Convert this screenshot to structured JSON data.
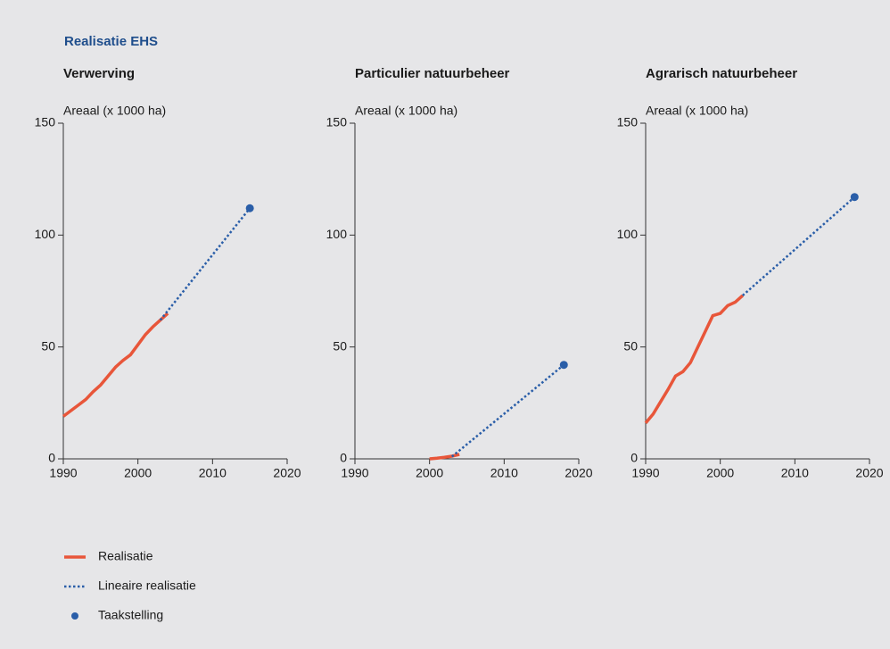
{
  "title": "Realisatie EHS",
  "chart_data": [
    {
      "type": "line",
      "title": "Verwerving",
      "ylabel": "Areaal (x 1000 ha)",
      "xlim": [
        1990,
        2020
      ],
      "xticks": [
        1990,
        2000,
        2010,
        2020
      ],
      "ylim": [
        0,
        150
      ],
      "yticks": [
        0,
        50,
        100,
        150
      ],
      "series": [
        {
          "name": "Realisatie",
          "color": "#e8563a",
          "line_style": "solid",
          "x": [
            1990,
            1991,
            1992,
            1993,
            1994,
            1995,
            1996,
            1997,
            1998,
            1999,
            2000,
            2001,
            2002,
            2003,
            2004
          ],
          "values": [
            19,
            21.5,
            24,
            26.5,
            30,
            33,
            37,
            41,
            44,
            46.5,
            51,
            55.5,
            59,
            62,
            65
          ]
        },
        {
          "name": "Lineaire realisatie",
          "color": "#2a5ea8",
          "line_style": "dotted",
          "x": [
            2003,
            2015
          ],
          "values": [
            62,
            112
          ]
        },
        {
          "name": "Taakstelling",
          "color": "#2a5ea8",
          "line_style": "none",
          "marker": "circle",
          "x": [
            2015
          ],
          "values": [
            112
          ]
        }
      ]
    },
    {
      "type": "line",
      "title": "Particulier natuurbeheer",
      "ylabel": "Areaal (x 1000 ha)",
      "xlim": [
        1990,
        2020
      ],
      "xticks": [
        1990,
        2000,
        2010,
        2020
      ],
      "ylim": [
        0,
        150
      ],
      "yticks": [
        0,
        50,
        100,
        150
      ],
      "series": [
        {
          "name": "Realisatie",
          "color": "#e8563a",
          "line_style": "solid",
          "x": [
            2000,
            2001,
            2002,
            2003,
            2004
          ],
          "values": [
            0,
            0.3,
            0.7,
            1.2,
            2
          ]
        },
        {
          "name": "Lineaire realisatie",
          "color": "#2a5ea8",
          "line_style": "dotted",
          "x": [
            2003,
            2018
          ],
          "values": [
            1,
            42
          ]
        },
        {
          "name": "Taakstelling",
          "color": "#2a5ea8",
          "line_style": "none",
          "marker": "circle",
          "x": [
            2018
          ],
          "values": [
            42
          ]
        }
      ]
    },
    {
      "type": "line",
      "title": "Agrarisch natuurbeheer",
      "ylabel": "Areaal (x 1000 ha)",
      "xlim": [
        1990,
        2020
      ],
      "xticks": [
        1990,
        2000,
        2010,
        2020
      ],
      "ylim": [
        0,
        150
      ],
      "yticks": [
        0,
        50,
        100,
        150
      ],
      "series": [
        {
          "name": "Realisatie",
          "color": "#e8563a",
          "line_style": "solid",
          "x": [
            1990,
            1991,
            1992,
            1993,
            1994,
            1995,
            1996,
            1997,
            1998,
            1999,
            2000,
            2001,
            2002,
            2003
          ],
          "values": [
            16,
            20,
            25.5,
            31,
            37,
            39,
            43,
            50,
            57,
            64,
            65,
            68.5,
            70,
            73
          ]
        },
        {
          "name": "Lineaire realisatie",
          "color": "#2a5ea8",
          "line_style": "dotted",
          "x": [
            2003,
            2018
          ],
          "values": [
            73,
            117
          ]
        },
        {
          "name": "Taakstelling",
          "color": "#2a5ea8",
          "line_style": "none",
          "marker": "circle",
          "x": [
            2018
          ],
          "values": [
            117
          ]
        }
      ]
    }
  ]
}
